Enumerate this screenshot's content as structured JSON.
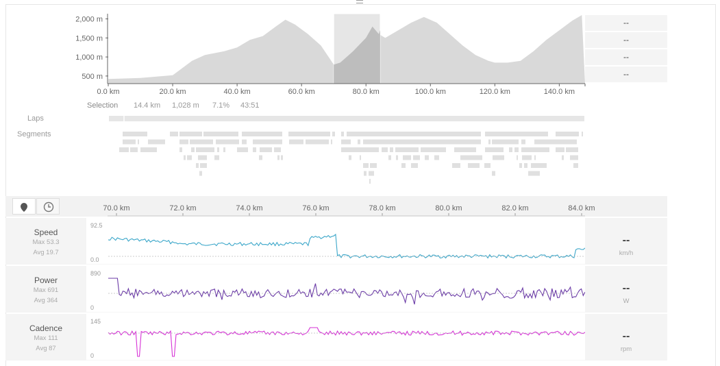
{
  "elevation": {
    "y_ticks": [
      "2,000 m",
      "1,500 m",
      "1,000 m",
      "500 m"
    ],
    "x_ticks": [
      "0.0 km",
      "20.0 km",
      "40.0 km",
      "60.0 km",
      "80.0 km",
      "100.0 km",
      "120.0 km",
      "140.0 km"
    ],
    "right_values": [
      "--",
      "--",
      "--",
      "--"
    ],
    "profile_km_m": [
      [
        0,
        420
      ],
      [
        10,
        450
      ],
      [
        20,
        520
      ],
      [
        26,
        900
      ],
      [
        30,
        1050
      ],
      [
        36,
        1150
      ],
      [
        40,
        1250
      ],
      [
        44,
        1450
      ],
      [
        48,
        1550
      ],
      [
        52,
        1800
      ],
      [
        55,
        1980
      ],
      [
        58,
        1850
      ],
      [
        62,
        1600
      ],
      [
        66,
        1300
      ],
      [
        70,
        800
      ],
      [
        72,
        850
      ],
      [
        76,
        1150
      ],
      [
        80,
        1500
      ],
      [
        82,
        1800
      ],
      [
        84,
        1600
      ],
      [
        86,
        1500
      ],
      [
        90,
        1700
      ],
      [
        94,
        1900
      ],
      [
        98,
        2050
      ],
      [
        102,
        1900
      ],
      [
        106,
        1600
      ],
      [
        110,
        1300
      ],
      [
        114,
        1050
      ],
      [
        118,
        900
      ],
      [
        120,
        850
      ],
      [
        124,
        850
      ],
      [
        128,
        900
      ],
      [
        132,
        1150
      ],
      [
        136,
        1450
      ],
      [
        140,
        1700
      ],
      [
        144,
        1950
      ],
      [
        147,
        2100
      ]
    ],
    "selection_range_km": [
      70.0,
      84.4
    ],
    "colors": {
      "profile": "#d9d9d9",
      "selection_bg": "#e6e6e6",
      "selection_fill": "#bdbdbd"
    }
  },
  "selection": {
    "label": "Selection",
    "stats": [
      "14.4 km",
      "1,028 m",
      "7.1%",
      "43:51"
    ]
  },
  "laps_label": "Laps",
  "segments_label": "Segments",
  "detail": {
    "x_ticks": [
      "70.0 km",
      "72.0 km",
      "74.0 km",
      "76.0 km",
      "78.0 km",
      "80.0 km",
      "82.0 km",
      "84.0 km"
    ],
    "toggle_icons": [
      "map-pin-icon",
      "clock-icon"
    ],
    "charts": [
      {
        "name": "Speed",
        "max": "Max 53.3",
        "avg": "Avg 19.7",
        "ymax": "92.5",
        "ymin": "0.0",
        "value": "--",
        "unit": "km/h",
        "color": "#3aa6c9"
      },
      {
        "name": "Power",
        "max": "Max 691",
        "avg": "Avg 364",
        "ymax": "890",
        "ymin": "0",
        "value": "--",
        "unit": "W",
        "color": "#6a3aa6"
      },
      {
        "name": "Cadence",
        "max": "Max 111",
        "avg": "Avg 87",
        "ymax": "145",
        "ymin": "0",
        "value": "--",
        "unit": "rpm",
        "color": "#d631d6"
      }
    ]
  }
}
